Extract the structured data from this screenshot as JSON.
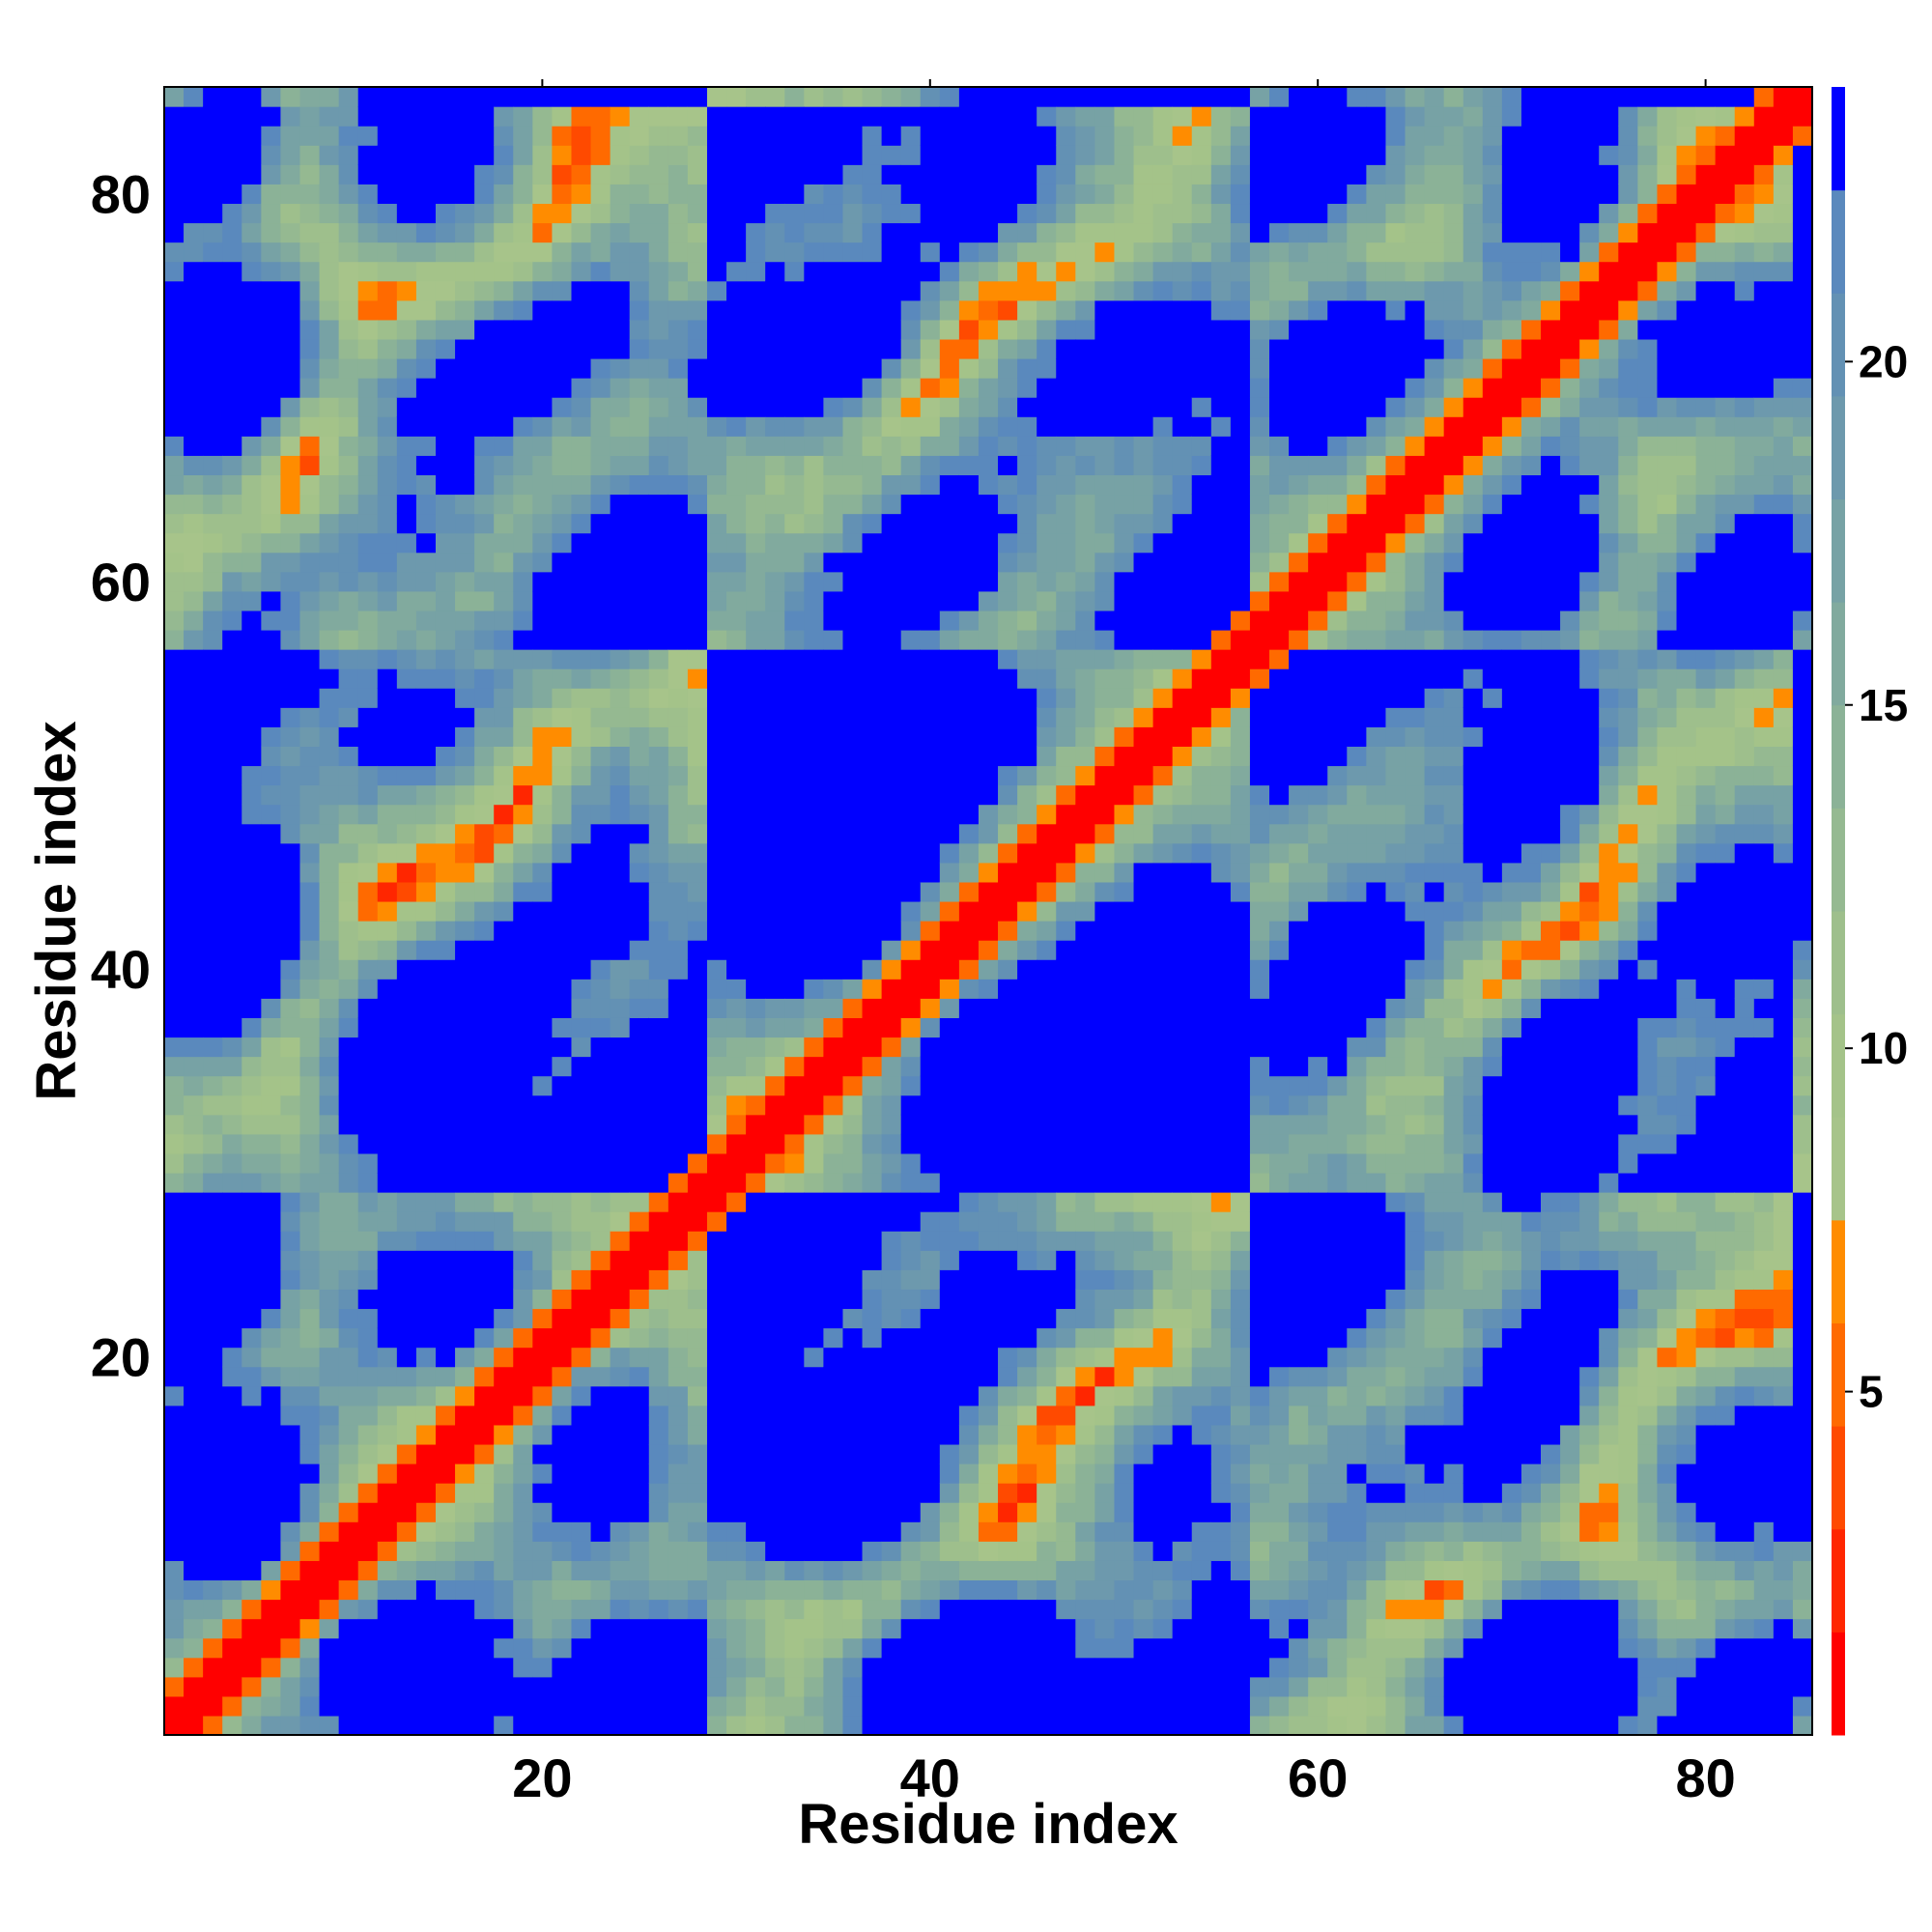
{
  "chart_data": {
    "type": "heatmap",
    "title": "",
    "xlabel": "Residue index",
    "ylabel": "Residue index",
    "n_residues": 85,
    "xlim": [
      0.5,
      85.5
    ],
    "ylim": [
      0.5,
      85.5
    ],
    "x_ticks": [
      20,
      40,
      60,
      80
    ],
    "y_ticks": [
      20,
      40,
      60,
      80
    ],
    "colorbar": {
      "range": [
        0,
        24
      ],
      "ticks": [
        5,
        10,
        15,
        20
      ],
      "bins": [
        {
          "from": 0,
          "to": 1.5,
          "color": "#ff0000"
        },
        {
          "from": 1.5,
          "to": 3,
          "color": "#ff2600"
        },
        {
          "from": 3,
          "to": 4.5,
          "color": "#ff4a00"
        },
        {
          "from": 4.5,
          "to": 6,
          "color": "#ff6a00"
        },
        {
          "from": 6,
          "to": 7.5,
          "color": "#ff8c00"
        },
        {
          "from": 7.5,
          "to": 9,
          "color": "#a7c48a"
        },
        {
          "from": 9,
          "to": 10.5,
          "color": "#a4c389"
        },
        {
          "from": 10.5,
          "to": 12,
          "color": "#9ebf8c"
        },
        {
          "from": 12,
          "to": 13.5,
          "color": "#95b991"
        },
        {
          "from": 13.5,
          "to": 15,
          "color": "#8bb297"
        },
        {
          "from": 15,
          "to": 16.5,
          "color": "#81aa9e"
        },
        {
          "from": 16.5,
          "to": 18,
          "color": "#77a2a5"
        },
        {
          "from": 18,
          "to": 19.5,
          "color": "#6d99ad"
        },
        {
          "from": 19.5,
          "to": 21,
          "color": "#6391b4"
        },
        {
          "from": 21,
          "to": 22.5,
          "color": "#5a89bd"
        },
        {
          "from": 22.5,
          "to": 24,
          "color": "#0000ff"
        }
      ]
    },
    "matrix_note": "Symmetric residue-residue distance map; diagonal ~0 (red), near-diagonal bands orange, distances > 22.5 shown solid blue."
  }
}
